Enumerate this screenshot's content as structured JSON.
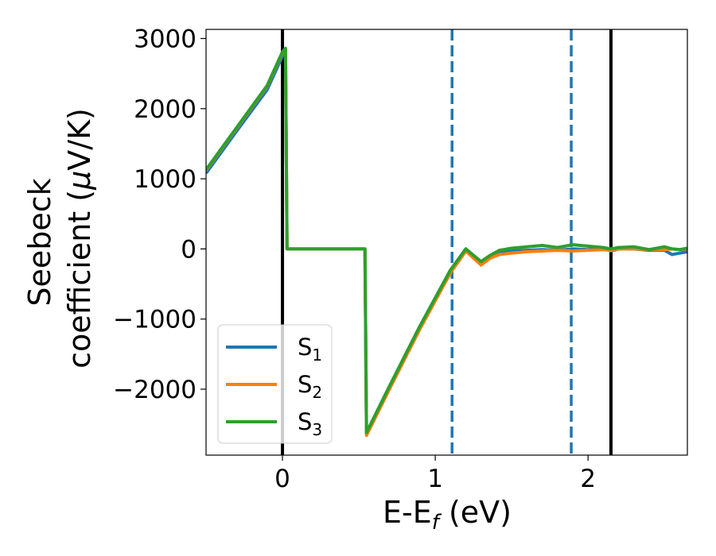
{
  "chart_data": {
    "type": "line",
    "xlabel_main": "E-E",
    "xlabel_sub": "f",
    "xlabel_unit": " (eV)",
    "ylabel_line1": "Seebeck",
    "ylabel_line2_text": "coefficient  (",
    "ylabel_mu": "μ",
    "ylabel_line2_unit": "V/K)",
    "xlim": [
      -0.5,
      2.65
    ],
    "ylim": [
      -2940,
      3130
    ],
    "xticks": [
      0,
      1,
      2
    ],
    "yticks": [
      -2000,
      -1000,
      0,
      1000,
      2000,
      3000
    ],
    "ytick_labels": [
      "−2000",
      "−1000",
      "0",
      "1000",
      "2000",
      "3000"
    ],
    "vlines": [
      {
        "x": 0.0,
        "style": "solid",
        "color": "#000000"
      },
      {
        "x": 1.11,
        "style": "dashed",
        "color": "#1f77b4"
      },
      {
        "x": 1.89,
        "style": "dashed",
        "color": "#1f77b4"
      },
      {
        "x": 2.15,
        "style": "solid",
        "color": "#000000"
      }
    ],
    "legend_position": "lower-left",
    "series": [
      {
        "name": "S",
        "subscript": "1",
        "color": "#1f77b4",
        "x": [
          -0.5,
          -0.3,
          -0.1,
          0.0,
          0.02,
          0.03,
          0.2,
          0.4,
          0.54,
          0.55,
          0.7,
          0.9,
          1.1,
          1.2,
          1.3,
          1.36,
          1.42,
          1.5,
          1.6,
          1.7,
          1.8,
          1.9,
          2.0,
          2.1,
          2.15,
          2.2,
          2.3,
          2.4,
          2.5,
          2.55,
          2.6,
          2.65
        ],
        "y": [
          1080,
          1680,
          2270,
          2750,
          2800,
          0,
          0,
          0,
          0,
          -2620,
          -1960,
          -1100,
          -300,
          0,
          -200,
          -100,
          -40,
          -30,
          -20,
          -10,
          -20,
          0,
          -10,
          10,
          -30,
          0,
          0,
          -20,
          -20,
          -80,
          -60,
          -40
        ]
      },
      {
        "name": "S",
        "subscript": "2",
        "color": "#ff7f0e",
        "x": [
          -0.5,
          -0.3,
          -0.1,
          0.0,
          0.02,
          0.03,
          0.2,
          0.4,
          0.54,
          0.55,
          0.7,
          0.9,
          1.1,
          1.2,
          1.3,
          1.36,
          1.42,
          1.5,
          1.6,
          1.7,
          1.8,
          1.9,
          2.0,
          2.1,
          2.15,
          2.2,
          2.3,
          2.4,
          2.5,
          2.55,
          2.6,
          2.65
        ],
        "y": [
          1120,
          1720,
          2320,
          2800,
          2850,
          0,
          0,
          0,
          0,
          -2660,
          -2000,
          -1140,
          -340,
          -30,
          -230,
          -130,
          -80,
          -60,
          -40,
          -30,
          -20,
          -30,
          -20,
          -10,
          -20,
          0,
          0,
          -10,
          -10,
          0,
          -10,
          0
        ]
      },
      {
        "name": "S",
        "subscript": "3",
        "color": "#2ca02c",
        "x": [
          -0.5,
          -0.3,
          -0.1,
          0.0,
          0.02,
          0.03,
          0.2,
          0.4,
          0.54,
          0.55,
          0.7,
          0.9,
          1.1,
          1.2,
          1.3,
          1.36,
          1.42,
          1.5,
          1.6,
          1.7,
          1.8,
          1.9,
          2.0,
          2.1,
          2.15,
          2.2,
          2.3,
          2.4,
          2.5,
          2.55,
          2.6,
          2.65
        ],
        "y": [
          1130,
          1730,
          2330,
          2810,
          2860,
          0,
          0,
          0,
          0,
          -2620,
          -1960,
          -1100,
          -300,
          0,
          -180,
          -90,
          -20,
          10,
          30,
          50,
          20,
          60,
          40,
          20,
          0,
          20,
          30,
          -10,
          30,
          0,
          -10,
          10
        ]
      }
    ]
  }
}
